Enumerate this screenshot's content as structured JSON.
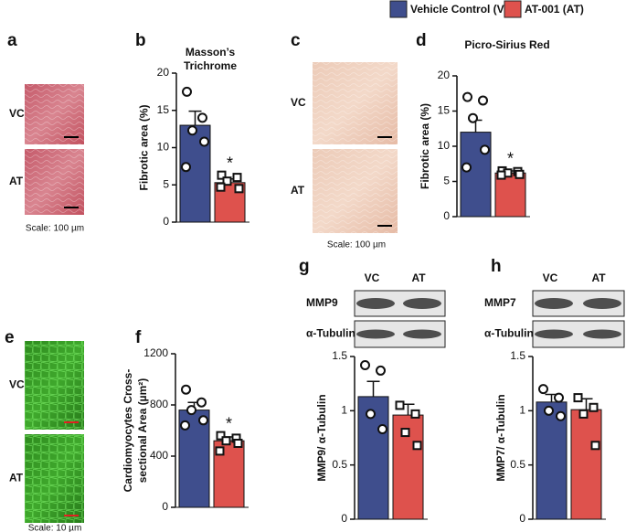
{
  "legend": [
    {
      "name": "Vehicle Control (VC)",
      "color": "#3f4e8d"
    },
    {
      "name": "AT-001 (AT)",
      "color": "#de524d"
    }
  ],
  "images": [
    {
      "label": "a",
      "rows": [
        "VC",
        "AT"
      ],
      "scale": "Scale: 100 µm"
    },
    {
      "label": "c",
      "rows": [
        "VC",
        "AT"
      ],
      "scale": "Scale: 100 µm"
    },
    {
      "label": "e",
      "rows": [
        "VC",
        "AT"
      ],
      "scale": "Scale: 10 µm"
    }
  ],
  "blots": [
    {
      "lanes": [
        "VC",
        "AT"
      ],
      "rows": [
        "MMP9",
        "α-Tubulin"
      ]
    },
    {
      "lanes": [
        "VC",
        "AT"
      ],
      "rows": [
        "MMP7",
        "α-Tubulin"
      ]
    }
  ],
  "chart_data": [
    {
      "label": "b",
      "type": "bar",
      "title": "Masson’s Trichrome",
      "ylabel": "Fibrotic area (%)",
      "values": [
        13,
        5.3
      ],
      "errors": [
        1.9,
        0.5
      ],
      "points": [
        [
          17.5,
          14,
          12.3,
          10.8,
          7.4
        ],
        [
          6.3,
          6,
          5.5,
          4.5,
          4.7
        ]
      ],
      "markers": [
        "circle",
        "square"
      ],
      "colors": [
        "#3f4e8d",
        "#de524d"
      ],
      "annotation": "*",
      "ylim": [
        0,
        20
      ],
      "yticks": [
        0,
        5,
        10,
        15,
        20
      ]
    },
    {
      "label": "d",
      "type": "bar",
      "title": "Picro-Sirius Red",
      "ylabel": "Fibrotic area (%)",
      "values": [
        12,
        6.2
      ],
      "errors": [
        1.7,
        0.3
      ],
      "points": [
        [
          17,
          16.5,
          14,
          9.5,
          7
        ],
        [
          6.5,
          6.4,
          6.2,
          6,
          5.9
        ]
      ],
      "markers": [
        "circle",
        "square"
      ],
      "colors": [
        "#3f4e8d",
        "#de524d"
      ],
      "annotation": "*",
      "ylim": [
        0,
        20
      ],
      "yticks": [
        0,
        5,
        10,
        15,
        20
      ]
    },
    {
      "label": "f",
      "type": "bar",
      "ylabel": "Cardiomyocytes Cross-sectional Area (µm²)",
      "values": [
        760,
        520
      ],
      "errors": [
        60,
        30
      ],
      "points": [
        [
          920,
          820,
          760,
          680,
          640
        ],
        [
          560,
          540,
          520,
          500,
          440
        ]
      ],
      "markers": [
        "circle",
        "square"
      ],
      "colors": [
        "#3f4e8d",
        "#de524d"
      ],
      "annotation": "*",
      "ylim": [
        0,
        1200
      ],
      "yticks": [
        0,
        400,
        800,
        1200
      ]
    },
    {
      "label": "g",
      "type": "bar",
      "ylabel": "MMP9/ α-Tubulin",
      "values": [
        1.13,
        0.96
      ],
      "errors": [
        0.14,
        0.1
      ],
      "points": [
        [
          1.42,
          1.37,
          0.97,
          0.83
        ],
        [
          1.05,
          0.97,
          0.8,
          0.68
        ]
      ],
      "markers": [
        "circle",
        "square"
      ],
      "colors": [
        "#3f4e8d",
        "#de524d"
      ],
      "ylim": [
        0,
        1.5
      ],
      "yticks": [
        0,
        0.5,
        1,
        1.5
      ]
    },
    {
      "label": "h",
      "type": "bar",
      "ylabel": "MMP7/ α-Tubulin",
      "values": [
        1.08,
        1.01
      ],
      "errors": [
        0.07,
        0.1
      ],
      "points": [
        [
          1.2,
          1.12,
          1,
          0.95
        ],
        [
          1.12,
          1.03,
          0.97,
          0.68
        ]
      ],
      "markers": [
        "circle",
        "square"
      ],
      "colors": [
        "#3f4e8d",
        "#de524d"
      ],
      "ylim": [
        0,
        1.5
      ],
      "yticks": [
        0,
        0.5,
        1,
        1.5
      ]
    }
  ]
}
